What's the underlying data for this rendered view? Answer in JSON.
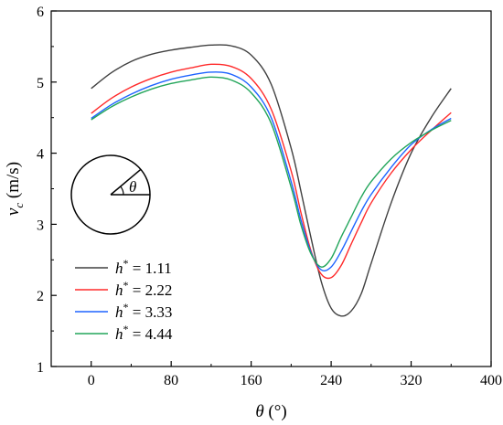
{
  "chart_data": {
    "type": "line",
    "xlabel": {
      "symbol": "θ",
      "unit": " (°)"
    },
    "ylabel": {
      "symbol": "v",
      "subscript": "c",
      "unit": " (m/s)"
    },
    "xlim": [
      -40,
      400
    ],
    "ylim": [
      1,
      6
    ],
    "xticks": [
      0,
      80,
      160,
      240,
      320,
      400
    ],
    "yticks": [
      1,
      2,
      3,
      4,
      5,
      6
    ],
    "grid": false,
    "legend_position": "bottom-left",
    "inset_label": "θ",
    "series": [
      {
        "name": "h* = 1.11",
        "label_var": "h",
        "label_sup": "*",
        "label_val": " = 1.11",
        "color": "#404040",
        "x": [
          0,
          20,
          40,
          60,
          80,
          100,
          120,
          140,
          160,
          180,
          200,
          210,
          220,
          230,
          240,
          250,
          260,
          270,
          280,
          300,
          320,
          340,
          360
        ],
        "y": [
          4.91,
          5.13,
          5.29,
          5.39,
          5.45,
          5.49,
          5.52,
          5.51,
          5.38,
          4.97,
          4.07,
          3.45,
          2.8,
          2.2,
          1.82,
          1.71,
          1.78,
          2.02,
          2.45,
          3.3,
          4.0,
          4.5,
          4.91
        ]
      },
      {
        "name": "h* = 2.22",
        "label_var": "h",
        "label_sup": "*",
        "label_val": " = 2.22",
        "color": "#ff2a2a",
        "x": [
          0,
          20,
          40,
          60,
          80,
          100,
          120,
          140,
          160,
          180,
          200,
          210,
          220,
          230,
          240,
          250,
          260,
          270,
          280,
          300,
          320,
          340,
          360
        ],
        "y": [
          4.56,
          4.77,
          4.93,
          5.05,
          5.14,
          5.2,
          5.25,
          5.22,
          5.05,
          4.62,
          3.75,
          3.15,
          2.62,
          2.3,
          2.25,
          2.42,
          2.72,
          3.02,
          3.3,
          3.72,
          4.05,
          4.32,
          4.57
        ]
      },
      {
        "name": "h* = 3.33",
        "label_var": "h",
        "label_sup": "*",
        "label_val": " = 3.33",
        "color": "#1e64ff",
        "x": [
          0,
          20,
          40,
          60,
          80,
          100,
          120,
          140,
          160,
          180,
          200,
          210,
          220,
          230,
          240,
          250,
          260,
          270,
          280,
          300,
          320,
          340,
          360
        ],
        "y": [
          4.49,
          4.68,
          4.83,
          4.95,
          5.04,
          5.1,
          5.14,
          5.11,
          4.93,
          4.5,
          3.6,
          3.05,
          2.6,
          2.36,
          2.4,
          2.62,
          2.9,
          3.18,
          3.42,
          3.8,
          4.12,
          4.33,
          4.49
        ]
      },
      {
        "name": "h* = 4.44",
        "label_var": "h",
        "label_sup": "*",
        "label_val": " = 4.44",
        "color": "#22a55a",
        "x": [
          0,
          20,
          40,
          60,
          80,
          100,
          120,
          140,
          160,
          180,
          200,
          210,
          220,
          230,
          240,
          250,
          260,
          270,
          280,
          300,
          320,
          340,
          360
        ],
        "y": [
          4.47,
          4.65,
          4.79,
          4.9,
          4.98,
          5.03,
          5.07,
          5.03,
          4.85,
          4.42,
          3.52,
          2.98,
          2.58,
          2.4,
          2.52,
          2.82,
          3.1,
          3.38,
          3.6,
          3.92,
          4.15,
          4.32,
          4.46
        ]
      }
    ]
  }
}
